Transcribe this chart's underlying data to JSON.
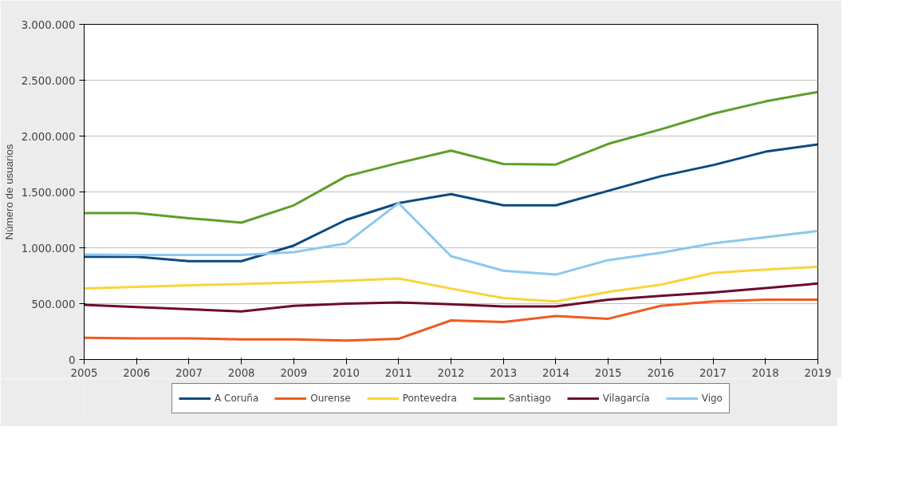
{
  "chart_data": {
    "type": "line",
    "ylabel": "Número de usuarios",
    "x": [
      2005,
      2006,
      2007,
      2008,
      2009,
      2010,
      2011,
      2012,
      2013,
      2014,
      2015,
      2016,
      2017,
      2018,
      2019
    ],
    "series": [
      {
        "name": "A Coruña",
        "color": "#0b4a80",
        "values": [
          920000,
          920000,
          880000,
          880000,
          1020000,
          1250000,
          1400000,
          1480000,
          1380000,
          1380000,
          1510000,
          1640000,
          1740000,
          1860000,
          1925000
        ]
      },
      {
        "name": "Ourense",
        "color": "#f05a22",
        "values": [
          195000,
          190000,
          190000,
          180000,
          180000,
          170000,
          185000,
          350000,
          335000,
          390000,
          365000,
          480000,
          520000,
          535000,
          535000
        ]
      },
      {
        "name": "Pontevedra",
        "color": "#f9d43a",
        "values": [
          635000,
          650000,
          665000,
          675000,
          690000,
          705000,
          725000,
          635000,
          550000,
          520000,
          605000,
          670000,
          775000,
          805000,
          830000
        ]
      },
      {
        "name": "Santiago",
        "color": "#5e9e2a",
        "values": [
          1310000,
          1310000,
          1265000,
          1225000,
          1380000,
          1640000,
          1760000,
          1870000,
          1750000,
          1745000,
          1930000,
          2060000,
          2200000,
          2310000,
          2395000
        ]
      },
      {
        "name": "Vilagarcía",
        "color": "#6e0a2e",
        "values": [
          490000,
          470000,
          450000,
          430000,
          480000,
          500000,
          510000,
          495000,
          475000,
          475000,
          535000,
          570000,
          600000,
          640000,
          680000
        ]
      },
      {
        "name": "Vigo",
        "color": "#8cc8ee",
        "values": [
          940000,
          935000,
          935000,
          935000,
          960000,
          1040000,
          1400000,
          925000,
          795000,
          760000,
          890000,
          955000,
          1040000,
          1095000,
          1150000
        ]
      }
    ],
    "xlim": [
      2005,
      2019
    ],
    "xticks": [
      2005,
      2006,
      2007,
      2008,
      2009,
      2010,
      2011,
      2012,
      2013,
      2014,
      2015,
      2016,
      2017,
      2018,
      2019
    ],
    "ylim": [
      0,
      3000000
    ],
    "yticks": [
      {
        "value": 0,
        "label": "0"
      },
      {
        "value": 500000,
        "label": "500.000"
      },
      {
        "value": 1000000,
        "label": "1.000.000"
      },
      {
        "value": 1500000,
        "label": "1.500.000"
      },
      {
        "value": 2000000,
        "label": "2.000.000"
      },
      {
        "value": 2500000,
        "label": "2.500.000"
      },
      {
        "value": 3000000,
        "label": "3.000.000"
      }
    ],
    "grid": "y",
    "legend": "bottom",
    "line_style": "solid"
  }
}
